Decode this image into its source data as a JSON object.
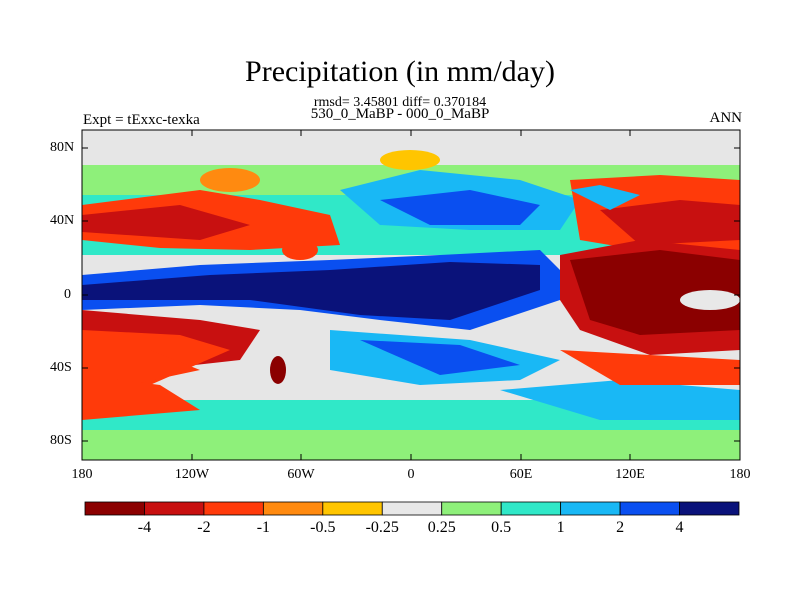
{
  "header": {
    "title": "Precipitation (in mm/day)",
    "stats": "rmsd= 3.45801 diff= 0.370184",
    "comparison": "530_0_MaBP - 000_0_MaBP",
    "experiment": "Expt = tExxc-texka",
    "season": "ANN"
  },
  "axes": {
    "lat_ticks": [
      "80N",
      "40N",
      "0",
      "40S",
      "80S"
    ],
    "lon_ticks": [
      "180",
      "120W",
      "60W",
      "0",
      "60E",
      "120E",
      "180"
    ]
  },
  "colorbar": {
    "colors": [
      "#8b0000",
      "#c81010",
      "#ff3a0a",
      "#ff8a10",
      "#ffc500",
      "#e8e8e8",
      "#8ef07a",
      "#30e8c8",
      "#19b8f5",
      "#0a4ff0",
      "#0a127a"
    ],
    "labels": [
      "-4",
      "-2",
      "-1",
      "-0.5",
      "-0.25",
      "0.25",
      "0.5",
      "1",
      "2",
      "4"
    ]
  },
  "map_colors": {
    "ice": "#e6e6e6",
    "dry_strong": "#8b0000",
    "dry": "#c81010",
    "dry_mid": "#ff3a0a",
    "neutral": "#e8e8e8",
    "wet_light": "#8ef07a",
    "wet_mid": "#30e8c8",
    "wet": "#19b8f5",
    "wet_strong": "#0a4ff0",
    "wet_extreme": "#0a127a"
  }
}
